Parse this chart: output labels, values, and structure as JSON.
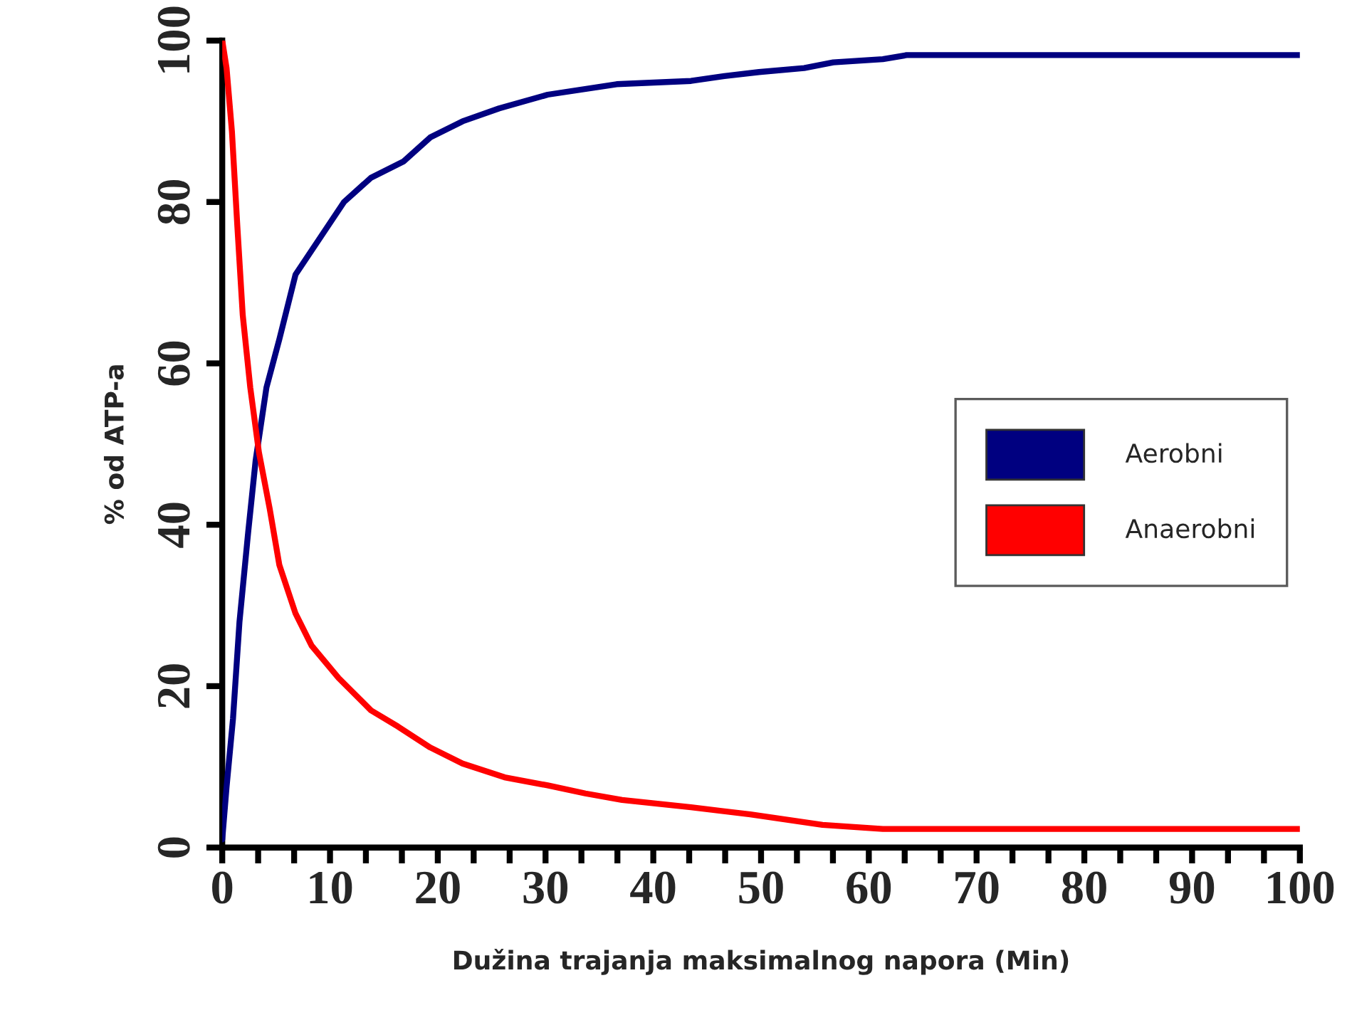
{
  "chart_data": {
    "type": "line",
    "xlabel": "Dužina trajanja maksimalnog napora (Min)",
    "ylabel": "% od ATP-a",
    "xlim": [
      0,
      100
    ],
    "ylim": [
      0,
      100
    ],
    "xticks": [
      0,
      {
        "value": 3.33,
        "label": null
      },
      {
        "value": 6.67,
        "label": null
      },
      10,
      {
        "value": 13.33,
        "label": null
      },
      {
        "value": 16.67,
        "label": null
      },
      20,
      {
        "value": 23.33,
        "label": null
      },
      {
        "value": 26.67,
        "label": null
      },
      30,
      {
        "value": 33.33,
        "label": null
      },
      {
        "value": 36.67,
        "label": null
      },
      40,
      {
        "value": 43.33,
        "label": null
      },
      {
        "value": 46.67,
        "label": null
      },
      50,
      {
        "value": 53.33,
        "label": null
      },
      {
        "value": 56.67,
        "label": null
      },
      60,
      {
        "value": 63.33,
        "label": null
      },
      {
        "value": 66.67,
        "label": null
      },
      70,
      {
        "value": 73.33,
        "label": null
      },
      {
        "value": 76.67,
        "label": null
      },
      80,
      {
        "value": 83.33,
        "label": null
      },
      {
        "value": 86.67,
        "label": null
      },
      90,
      {
        "value": 93.33,
        "label": null
      },
      {
        "value": 96.67,
        "label": null
      },
      100
    ],
    "yticks": [
      0,
      20,
      40,
      60,
      80,
      100
    ],
    "grid": false,
    "legend": "right",
    "line_style": "solid",
    "marker": "none",
    "series": [
      {
        "name": "Aerobni",
        "color": "#000080",
        "x": [
          0,
          0.4,
          1.0,
          1.6,
          2.4,
          3.1,
          4.1,
          5.3,
          6.8,
          8.3,
          9.8,
          11.3,
          13.8,
          16.8,
          19.3,
          22.3,
          25.7,
          30.2,
          36.6,
          43.5,
          46.6,
          49.8,
          54,
          56.7,
          61.3,
          63.5,
          100
        ],
        "values": [
          1,
          7.5,
          16,
          28,
          39,
          48,
          57,
          63,
          71,
          74,
          77,
          80,
          83,
          85,
          88,
          90,
          91.6,
          93.3,
          94.6,
          95,
          95.6,
          96.1,
          96.6,
          97.3,
          97.7,
          98.2,
          98.2
        ]
      },
      {
        "name": "Anaerobni",
        "color": "#ff0000",
        "x": [
          0,
          0.4,
          0.9,
          1.4,
          1.9,
          2.6,
          3.4,
          4.4,
          5.3,
          6.8,
          8.3,
          10.8,
          13.8,
          16.3,
          19.3,
          22.3,
          26.2,
          30.2,
          33.7,
          37.1,
          43.5,
          49,
          55.7,
          61.3,
          100
        ],
        "values": [
          100,
          96.6,
          88.7,
          77,
          66,
          57,
          49,
          42,
          35,
          29,
          25,
          21,
          17,
          15,
          12.4,
          10.4,
          8.7,
          7.7,
          6.7,
          5.9,
          5.0,
          4.1,
          2.8,
          2.3,
          2.3
        ]
      }
    ]
  }
}
